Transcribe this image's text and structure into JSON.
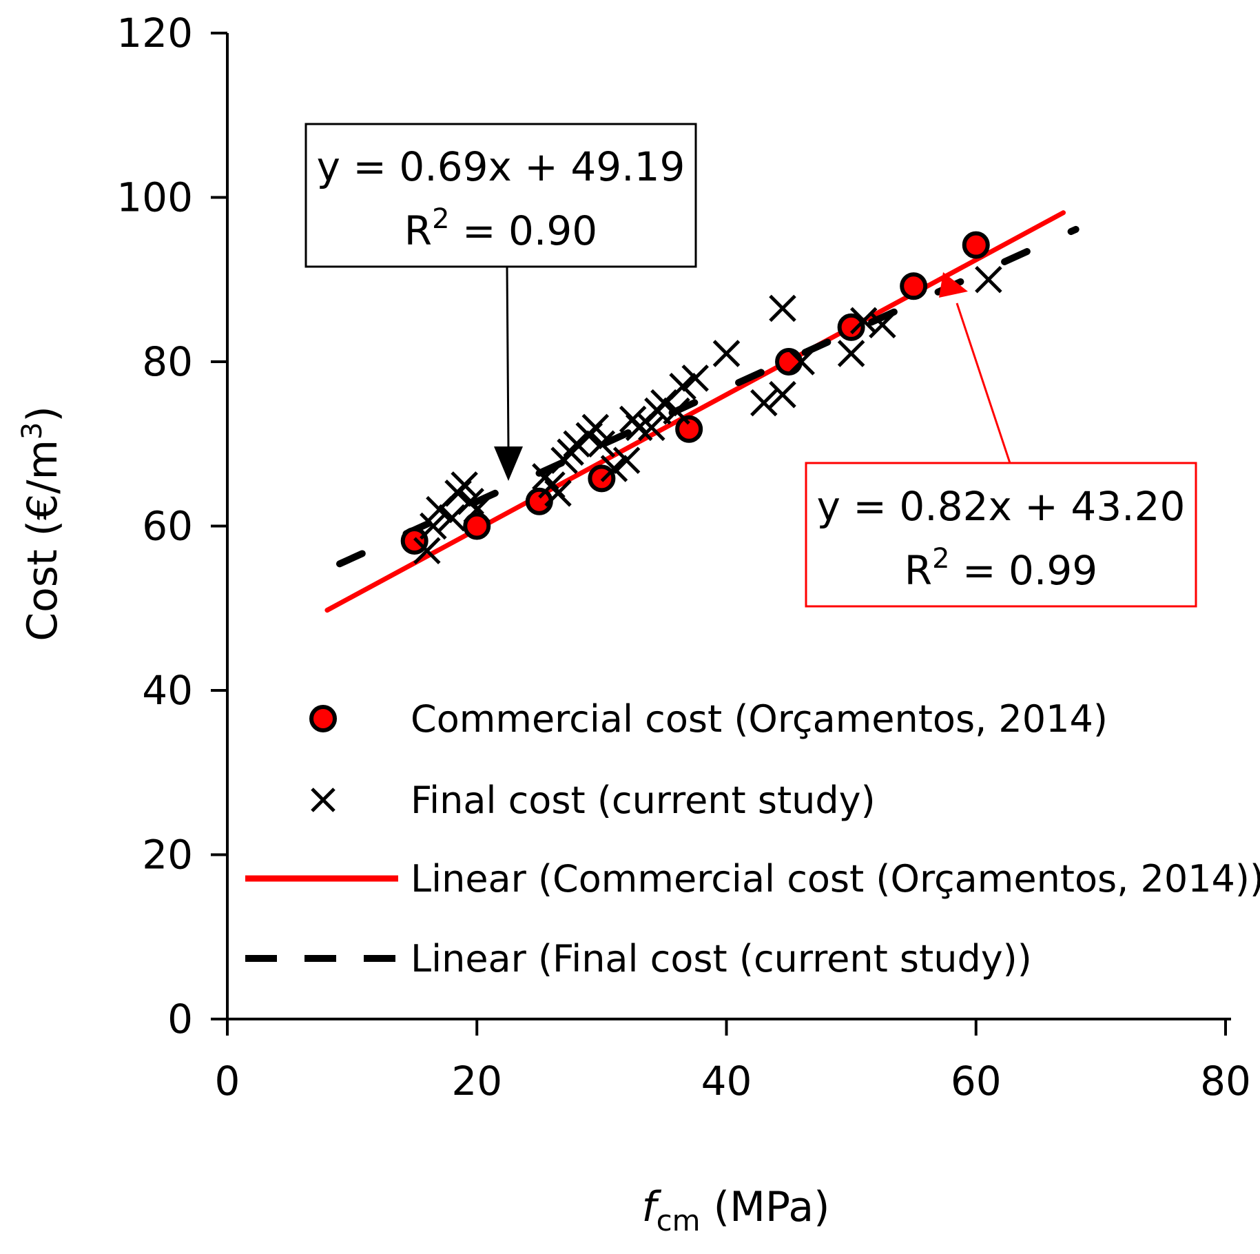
{
  "chart_data": {
    "type": "scatter",
    "xlabel_var": "f",
    "xlabel_sub": "cm",
    "xlabel_unit": " (MPa)",
    "ylabel": "Cost (€/m",
    "ylabel_sup": "3",
    "ylabel_close": ")",
    "xlim": [
      0,
      80
    ],
    "ylim": [
      0,
      120
    ],
    "x_ticks": [
      0,
      20,
      40,
      60,
      80
    ],
    "y_ticks": [
      0,
      20,
      40,
      60,
      80,
      100,
      120
    ],
    "series": [
      {
        "name": "Commercial cost (Orçamentos, 2014)",
        "marker": "circle",
        "color": "#ff0000",
        "points": [
          [
            15,
            58.2
          ],
          [
            20,
            60
          ],
          [
            25,
            63
          ],
          [
            30,
            65.8
          ],
          [
            37,
            71.8
          ],
          [
            45,
            80
          ],
          [
            50,
            84.2
          ],
          [
            55,
            89.2
          ],
          [
            60,
            94.2
          ]
        ]
      },
      {
        "name": "Final cost (current study)",
        "marker": "x",
        "color": "#000000",
        "points": [
          [
            16,
            57
          ],
          [
            16.5,
            60
          ],
          [
            17,
            62
          ],
          [
            18,
            61
          ],
          [
            18.5,
            64
          ],
          [
            19,
            65
          ],
          [
            19.5,
            63
          ],
          [
            20,
            62
          ],
          [
            25.5,
            66
          ],
          [
            26,
            65
          ],
          [
            26.5,
            64
          ],
          [
            27,
            68
          ],
          [
            27.5,
            69
          ],
          [
            28,
            70
          ],
          [
            29,
            71
          ],
          [
            29.5,
            72
          ],
          [
            30,
            70
          ],
          [
            31,
            67
          ],
          [
            32,
            68
          ],
          [
            32.5,
            73
          ],
          [
            33,
            72
          ],
          [
            34,
            72
          ],
          [
            34.5,
            74
          ],
          [
            35,
            75
          ],
          [
            36,
            74
          ],
          [
            36.5,
            77
          ],
          [
            37.5,
            78
          ],
          [
            40,
            81
          ],
          [
            43,
            75
          ],
          [
            44.5,
            76
          ],
          [
            44.5,
            86.5
          ],
          [
            46,
            80
          ],
          [
            50,
            81
          ],
          [
            51,
            85
          ],
          [
            52.5,
            84.5
          ],
          [
            61,
            90
          ]
        ]
      }
    ],
    "trendlines": [
      {
        "name": "Linear (Commercial cost (Orçamentos, 2014))",
        "slope": 0.82,
        "intercept": 43.2,
        "x_range": [
          8,
          67
        ],
        "color": "#ff0000",
        "style": "solid",
        "equation": "y = 0.82x + 43.20",
        "r2_label": "R",
        "r2_sup": "2",
        "r2_value": " = 0.99"
      },
      {
        "name": "Linear (Final cost (current study))",
        "slope": 0.69,
        "intercept": 49.19,
        "x_range": [
          9,
          68
        ],
        "color": "#000000",
        "style": "dashed",
        "equation": "y = 0.69x + 49.19",
        "r2_label": "R",
        "r2_sup": "2",
        "r2_value": " = 0.90"
      }
    ],
    "legend_placement": "lower-right",
    "grid": false
  }
}
